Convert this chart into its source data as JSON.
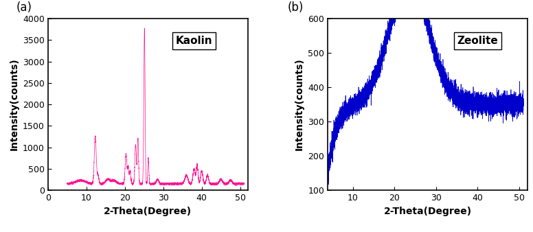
{
  "kaolin": {
    "label": "Kaolin",
    "color": "#FF1493",
    "xlim": [
      0,
      52
    ],
    "ylim": [
      0,
      4000
    ],
    "xticks": [
      0,
      10,
      20,
      30,
      40,
      50
    ],
    "yticks": [
      0,
      500,
      1000,
      1500,
      2000,
      2500,
      3000,
      3500,
      4000
    ],
    "xlabel": "2-Theta(Degree)",
    "ylabel": "Intensity(counts)",
    "panel_label": "(a)"
  },
  "zeolite": {
    "label": "Zeolite",
    "color": "#0000CC",
    "xlim": [
      4,
      52
    ],
    "ylim": [
      100,
      600
    ],
    "xticks": [
      10,
      20,
      30,
      40,
      50
    ],
    "yticks": [
      100,
      200,
      300,
      400,
      500,
      600
    ],
    "xlabel": "2-Theta(Degree)",
    "ylabel": "Intensity(counts)",
    "panel_label": "(b)"
  },
  "background_color": "#ffffff"
}
